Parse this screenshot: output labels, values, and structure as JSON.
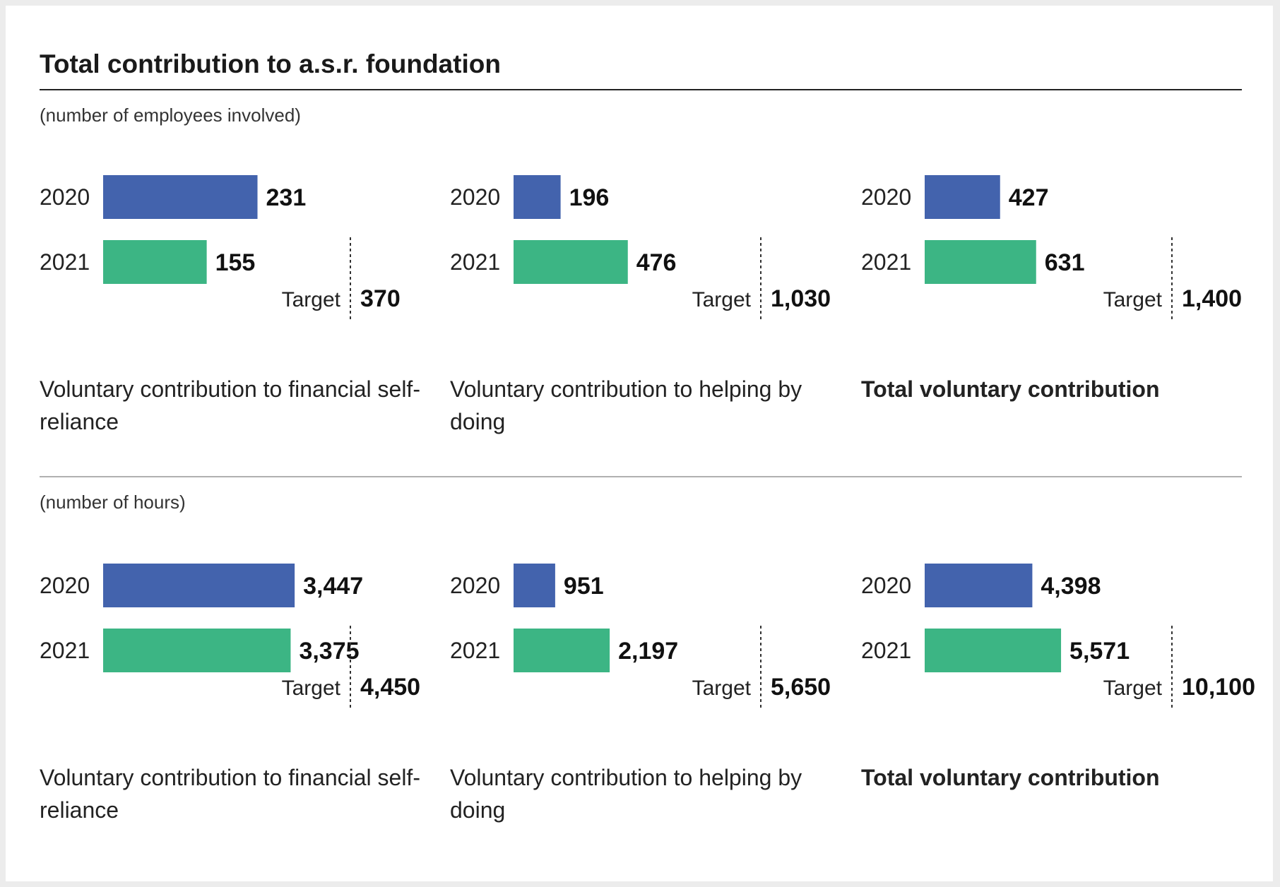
{
  "title": "Total contribution to a.s.r. foundation",
  "colors": {
    "y2020": "#4363ad",
    "y2021": "#3cb584"
  },
  "chart_data": [
    {
      "type": "bar",
      "section": "(number of employees involved)",
      "title": "Voluntary contribution to financial self-reliance",
      "categories": [
        "2020",
        "2021"
      ],
      "values": [
        231,
        155
      ],
      "value_labels": [
        "231",
        "155"
      ],
      "target_label": "Target",
      "target": 370,
      "target_text": "370"
    },
    {
      "type": "bar",
      "section": "(number of employees involved)",
      "title": "Voluntary contribution to helping by doing",
      "categories": [
        "2020",
        "2021"
      ],
      "values": [
        196,
        476
      ],
      "value_labels": [
        "196",
        "476"
      ],
      "target_label": "Target",
      "target": 1030,
      "target_text": "1,030"
    },
    {
      "type": "bar",
      "section": "(number of employees involved)",
      "title": "Total voluntary contribution",
      "categories": [
        "2020",
        "2021"
      ],
      "values": [
        427,
        631
      ],
      "value_labels": [
        "427",
        "631"
      ],
      "target_label": "Target",
      "target": 1400,
      "target_text": "1,400"
    },
    {
      "type": "bar",
      "section": "(number of hours)",
      "title": "Voluntary contribution to financial self-reliance",
      "categories": [
        "2020",
        "2021"
      ],
      "values": [
        3447,
        3375
      ],
      "value_labels": [
        "3,447",
        "3,375"
      ],
      "target_label": "Target",
      "target": 4450,
      "target_text": "4,450"
    },
    {
      "type": "bar",
      "section": "(number of hours)",
      "title": "Voluntary contribution to helping by doing",
      "categories": [
        "2020",
        "2021"
      ],
      "values": [
        951,
        2197
      ],
      "value_labels": [
        "951",
        "2,197"
      ],
      "target_label": "Target",
      "target": 5650,
      "target_text": "5,650"
    },
    {
      "type": "bar",
      "section": "(number of hours)",
      "title": "Total voluntary contribution",
      "categories": [
        "2020",
        "2021"
      ],
      "values": [
        4398,
        5571
      ],
      "value_labels": [
        "4,398",
        "5,571"
      ],
      "target_label": "Target",
      "target": 10100,
      "target_text": "10,100"
    }
  ]
}
